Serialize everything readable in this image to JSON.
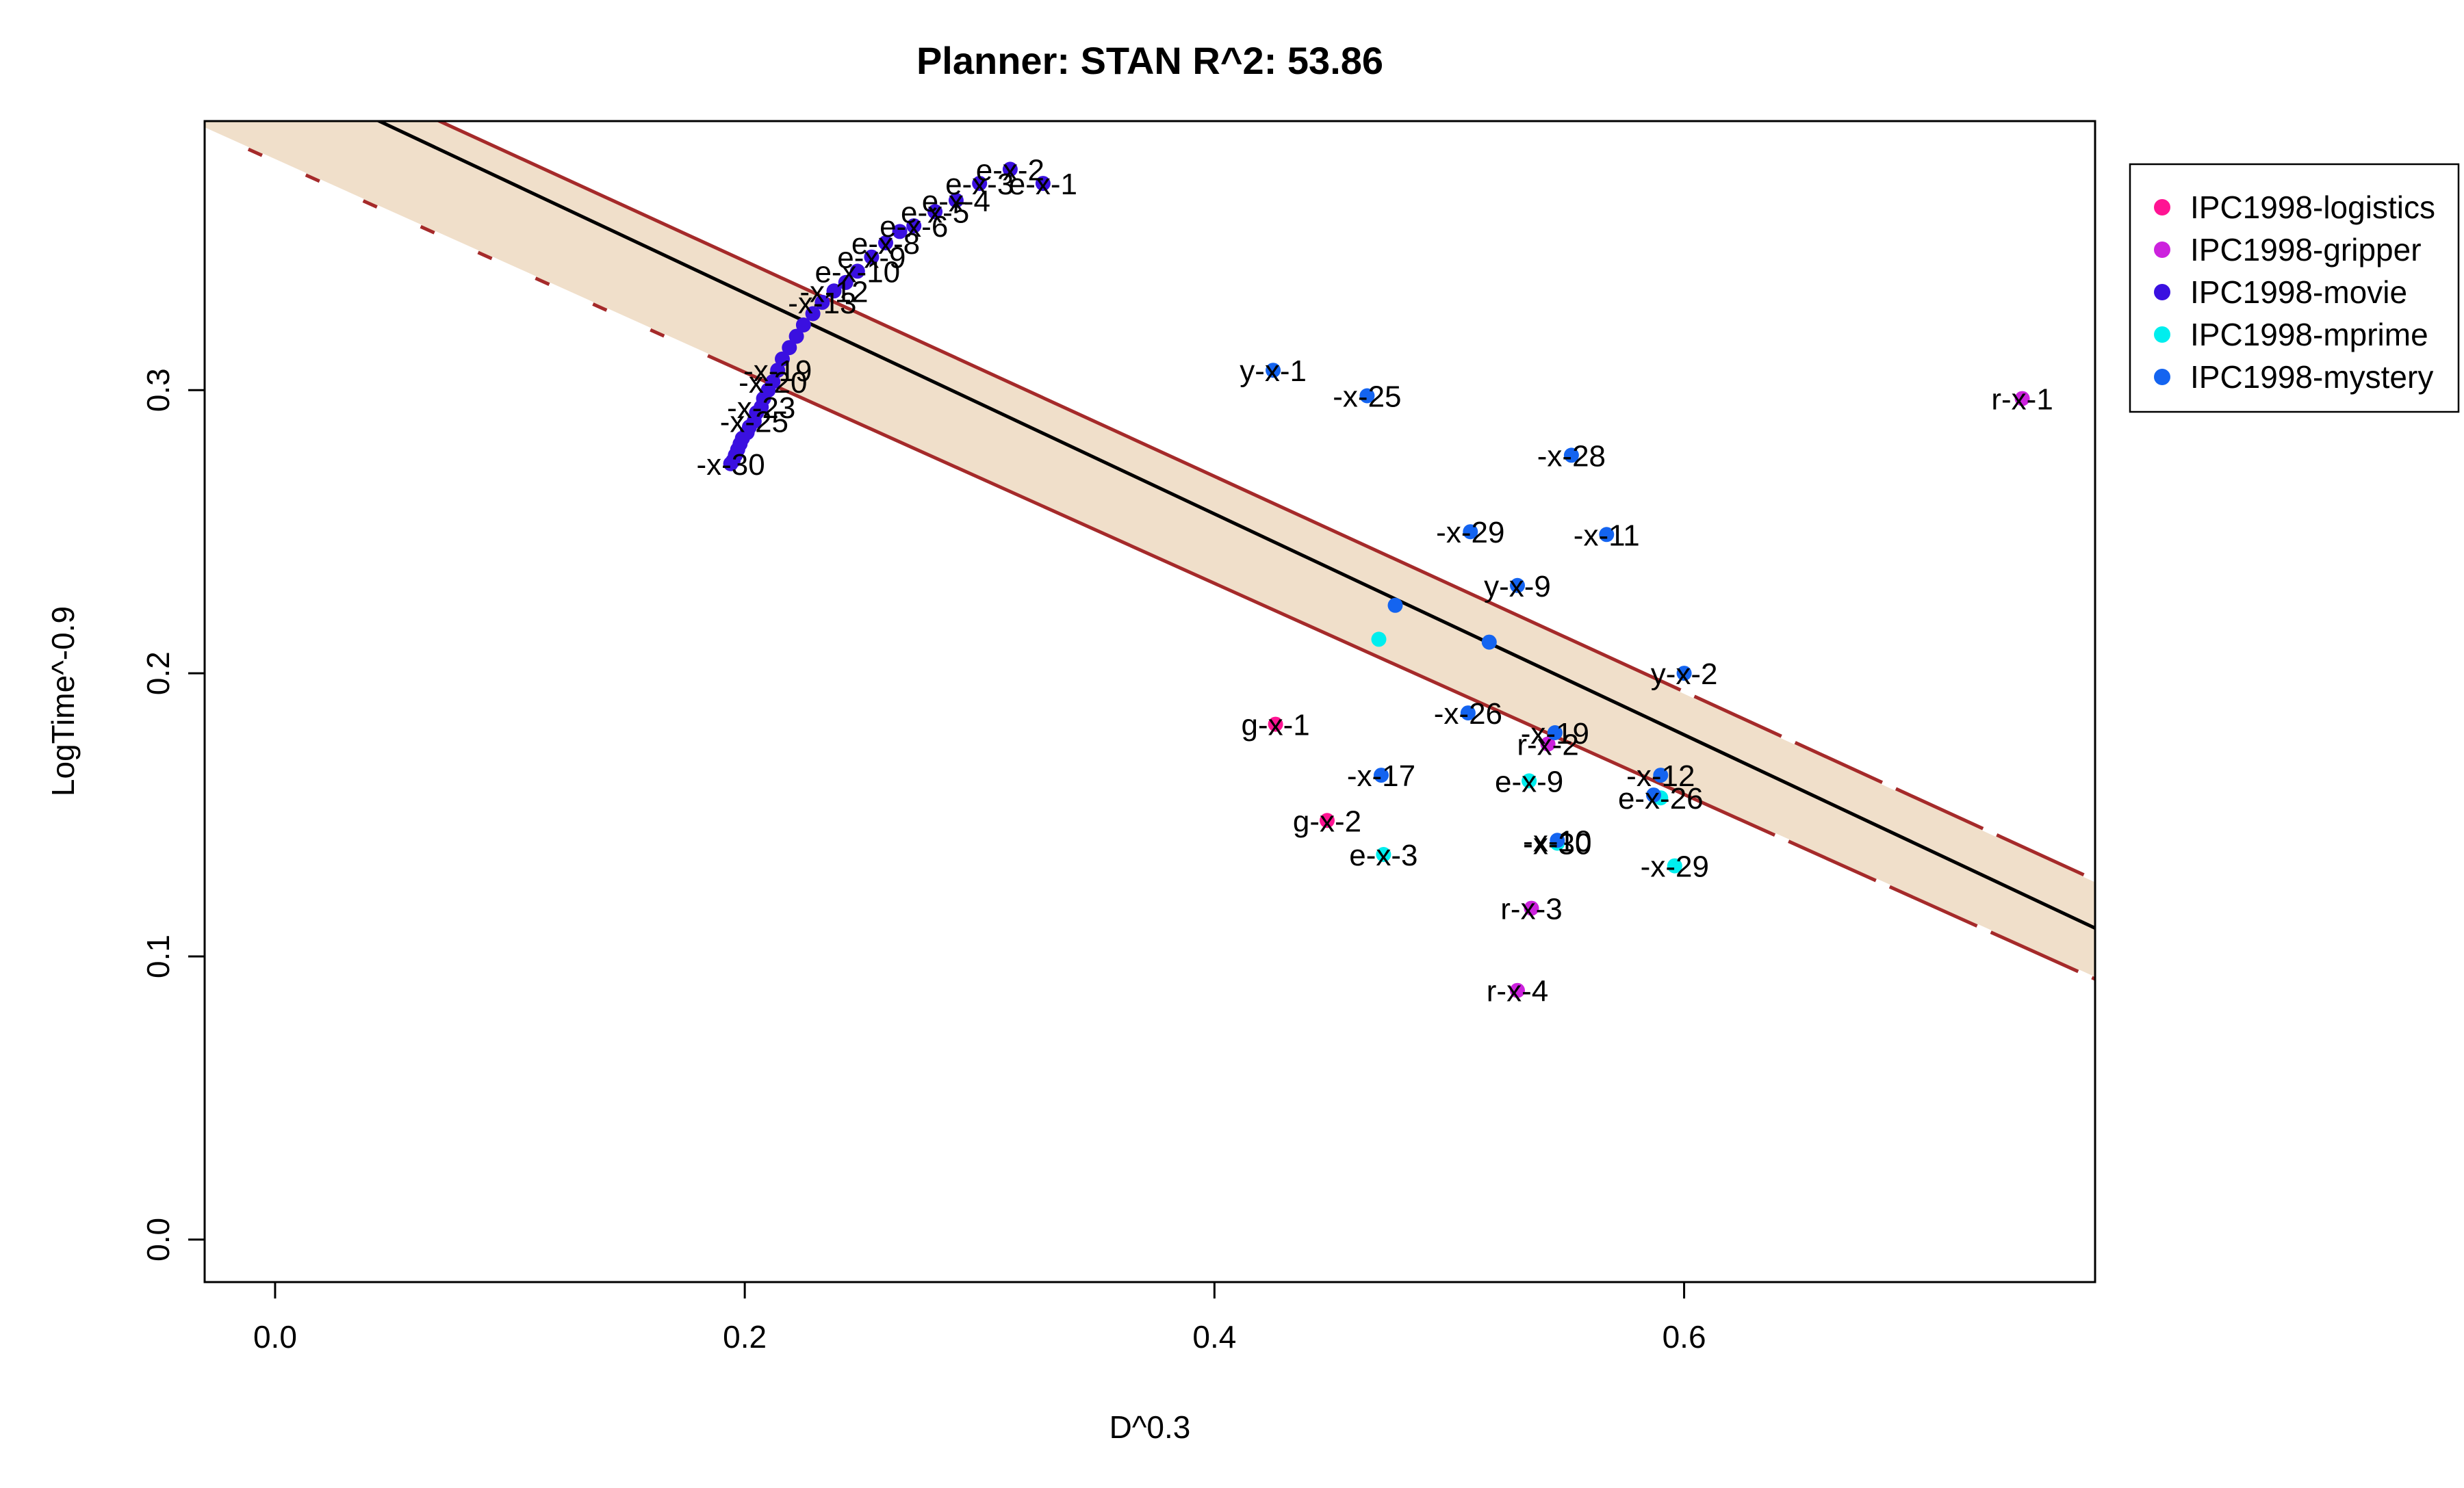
{
  "chart_data": {
    "type": "scatter",
    "title": "Planner: STAN R^2: 53.86",
    "xlabel": "D^0.3",
    "ylabel": "LogTime^-0.9",
    "xlim": [
      -0.03,
      0.775
    ],
    "ylim": [
      -0.015,
      0.395
    ],
    "xticks": [
      0.0,
      0.2,
      0.4,
      0.6
    ],
    "yticks": [
      0.0,
      0.1,
      0.2,
      0.3
    ],
    "xtick_labels": [
      "0.0",
      "0.2",
      "0.4",
      "0.6"
    ],
    "ytick_labels": [
      "0.0",
      "0.1",
      "0.2",
      "0.3"
    ],
    "grid": false,
    "legend_position": "right-outside-top",
    "fit": {
      "line": [
        [
          -0.03,
          0.424
        ],
        [
          0.775,
          0.11
        ]
      ],
      "upper": [
        [
          0.07,
          0.395
        ],
        [
          0.775,
          0.127
        ]
      ],
      "lower": [
        [
          -0.03,
          0.392
        ],
        [
          0.775,
          0.092
        ]
      ],
      "band_fill": "#f0dfca",
      "line_color": "#000000",
      "bound_color": "#a52a2a"
    },
    "series": [
      {
        "name": "IPC1998-logistics",
        "color": "#ff1493",
        "points": [
          {
            "x": 0.426,
            "y": 0.182,
            "label": "g-x-1"
          },
          {
            "x": 0.448,
            "y": 0.148,
            "label": "g-x-2"
          }
        ]
      },
      {
        "name": "IPC1998-gripper",
        "color": "#cc22dd",
        "points": [
          {
            "x": 0.744,
            "y": 0.297,
            "label": "r-x-1"
          },
          {
            "x": 0.542,
            "y": 0.175,
            "label": "r-x-2"
          },
          {
            "x": 0.535,
            "y": 0.117,
            "label": "r-x-3"
          },
          {
            "x": 0.529,
            "y": 0.088,
            "label": "r-x-4"
          }
        ]
      },
      {
        "name": "IPC1998-movie",
        "color": "#3a10e0",
        "points": [
          {
            "x": 0.313,
            "y": 0.378,
            "label": "e-x-2"
          },
          {
            "x": 0.327,
            "y": 0.373,
            "label": "e-x-1"
          },
          {
            "x": 0.3,
            "y": 0.373,
            "label": "e-x-3"
          },
          {
            "x": 0.29,
            "y": 0.367,
            "label": "e-x-4"
          },
          {
            "x": 0.281,
            "y": 0.363,
            "label": "e-x-5"
          },
          {
            "x": 0.272,
            "y": 0.358,
            "label": "e-x-6"
          },
          {
            "x": 0.266,
            "y": 0.356,
            "label": ""
          },
          {
            "x": 0.26,
            "y": 0.352,
            "label": "e-x-8"
          },
          {
            "x": 0.254,
            "y": 0.347,
            "label": "e-x-9"
          },
          {
            "x": 0.248,
            "y": 0.342,
            "label": "e-x-10"
          },
          {
            "x": 0.243,
            "y": 0.338,
            "label": ""
          },
          {
            "x": 0.238,
            "y": 0.335,
            "label": "-x-12"
          },
          {
            "x": 0.233,
            "y": 0.331,
            "label": "-x-13"
          },
          {
            "x": 0.229,
            "y": 0.327,
            "label": ""
          },
          {
            "x": 0.225,
            "y": 0.323,
            "label": ""
          },
          {
            "x": 0.222,
            "y": 0.319,
            "label": ""
          },
          {
            "x": 0.219,
            "y": 0.315,
            "label": ""
          },
          {
            "x": 0.216,
            "y": 0.311,
            "label": ""
          },
          {
            "x": 0.214,
            "y": 0.307,
            "label": "-x-19"
          },
          {
            "x": 0.212,
            "y": 0.303,
            "label": "-x-20"
          },
          {
            "x": 0.21,
            "y": 0.3,
            "label": ""
          },
          {
            "x": 0.208,
            "y": 0.297,
            "label": ""
          },
          {
            "x": 0.207,
            "y": 0.294,
            "label": "-x-23"
          },
          {
            "x": 0.205,
            "y": 0.292,
            "label": ""
          },
          {
            "x": 0.204,
            "y": 0.289,
            "label": "-x-25"
          },
          {
            "x": 0.202,
            "y": 0.287,
            "label": ""
          },
          {
            "x": 0.201,
            "y": 0.285,
            "label": ""
          },
          {
            "x": 0.199,
            "y": 0.283,
            "label": ""
          },
          {
            "x": 0.198,
            "y": 0.281,
            "label": ""
          },
          {
            "x": 0.197,
            "y": 0.279,
            "label": ""
          },
          {
            "x": 0.196,
            "y": 0.277,
            "label": ""
          },
          {
            "x": 0.195,
            "y": 0.275,
            "label": ""
          },
          {
            "x": 0.194,
            "y": 0.274,
            "label": "-x-30"
          }
        ]
      },
      {
        "name": "IPC1998-mprime",
        "color": "#00eeee",
        "points": [
          {
            "x": 0.47,
            "y": 0.212,
            "label": ""
          },
          {
            "x": 0.534,
            "y": 0.162,
            "label": "e-x-9"
          },
          {
            "x": 0.472,
            "y": 0.136,
            "label": "e-x-3"
          },
          {
            "x": 0.596,
            "y": 0.132,
            "label": "-x-29"
          },
          {
            "x": 0.546,
            "y": 0.14,
            "label": "-x-30"
          },
          {
            "x": 0.59,
            "y": 0.156,
            "label": "e-x-26"
          }
        ]
      },
      {
        "name": "IPC1998-mystery",
        "color": "#1464f0",
        "points": [
          {
            "x": 0.425,
            "y": 0.307,
            "label": "y-x-1"
          },
          {
            "x": 0.465,
            "y": 0.298,
            "label": "-x-25"
          },
          {
            "x": 0.552,
            "y": 0.277,
            "label": "-x-28"
          },
          {
            "x": 0.509,
            "y": 0.25,
            "label": "-x-29"
          },
          {
            "x": 0.567,
            "y": 0.249,
            "label": "-x-11"
          },
          {
            "x": 0.529,
            "y": 0.231,
            "label": "y-x-9"
          },
          {
            "x": 0.477,
            "y": 0.224,
            "label": ""
          },
          {
            "x": 0.517,
            "y": 0.211,
            "label": ""
          },
          {
            "x": 0.6,
            "y": 0.2,
            "label": "y-x-2"
          },
          {
            "x": 0.508,
            "y": 0.186,
            "label": "-x-26"
          },
          {
            "x": 0.545,
            "y": 0.179,
            "label": "-x-19"
          },
          {
            "x": 0.471,
            "y": 0.164,
            "label": "-x-17"
          },
          {
            "x": 0.59,
            "y": 0.164,
            "label": "-x-12"
          },
          {
            "x": 0.587,
            "y": 0.157,
            "label": ""
          },
          {
            "x": 0.546,
            "y": 0.141,
            "label": "-x-10"
          }
        ]
      }
    ]
  }
}
